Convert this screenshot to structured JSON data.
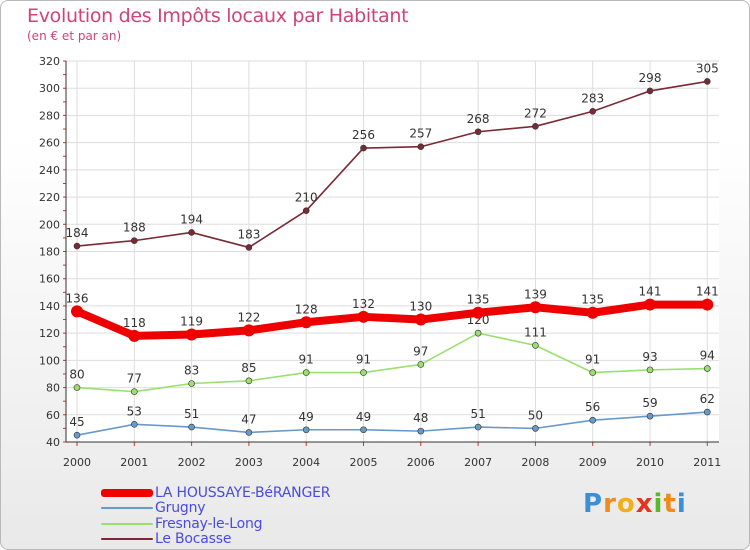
{
  "header": {
    "title": "Evolution des Impôts locaux par Habitant",
    "subtitle": "(en € et par an)"
  },
  "logo": {
    "text": "Proxiti"
  },
  "chart_data": {
    "type": "line",
    "title": "Evolution des Impôts locaux par Habitant",
    "subtitle": "(en € et par an)",
    "xlabel": "",
    "ylabel": "",
    "categories": [
      "2000",
      "2001",
      "2002",
      "2003",
      "2004",
      "2005",
      "2006",
      "2007",
      "2008",
      "2009",
      "2010",
      "2011"
    ],
    "ylim": [
      40,
      320
    ],
    "yticks": [
      40,
      60,
      80,
      100,
      120,
      140,
      160,
      180,
      200,
      220,
      240,
      260,
      280,
      300,
      320
    ],
    "grid": true,
    "legend_position": "bottom-left",
    "series": [
      {
        "name": "LA HOUSSAYE-BéRANGER",
        "color": "#ee0000",
        "values": [
          136,
          118,
          119,
          122,
          128,
          132,
          130,
          135,
          139,
          135,
          141,
          141
        ]
      },
      {
        "name": "Grugny",
        "color": "#6699cc",
        "values": [
          45,
          53,
          51,
          47,
          49,
          49,
          48,
          51,
          50,
          56,
          59,
          62
        ]
      },
      {
        "name": "Fresnay-le-Long",
        "color": "#99e070",
        "values": [
          80,
          77,
          83,
          85,
          91,
          91,
          97,
          120,
          111,
          91,
          93,
          94
        ]
      },
      {
        "name": "Le Bocasse",
        "color": "#7a2a35",
        "values": [
          184,
          188,
          194,
          183,
          210,
          256,
          257,
          268,
          272,
          283,
          298,
          305
        ]
      }
    ]
  }
}
